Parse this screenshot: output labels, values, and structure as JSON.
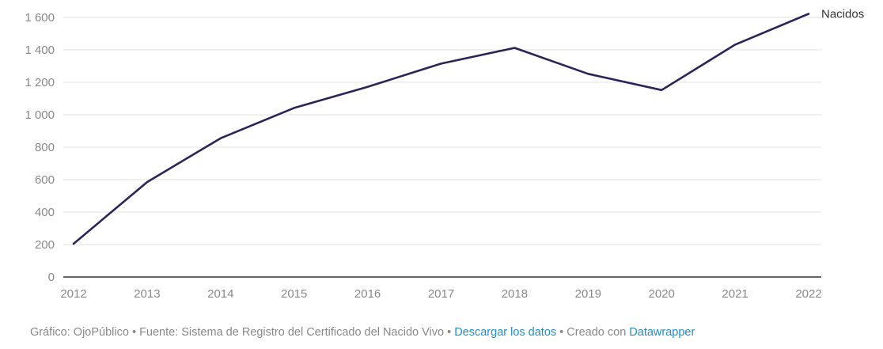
{
  "chart_data": {
    "type": "line",
    "x": [
      2012,
      2013,
      2014,
      2015,
      2016,
      2017,
      2018,
      2019,
      2020,
      2021,
      2022
    ],
    "series": [
      {
        "name": "Nacidos",
        "values": [
          205,
          585,
          855,
          1042,
          1172,
          1315,
          1412,
          1252,
          1152,
          1432,
          1622
        ],
        "color": "#2c2459"
      }
    ],
    "y_ticks": [
      0,
      200,
      400,
      600,
      800,
      1000,
      1200,
      1400,
      1600
    ],
    "y_tick_labels": [
      "0",
      "200",
      "400",
      "600",
      "800",
      "1 000",
      "1 200",
      "1 400",
      "1 600"
    ],
    "x_tick_labels": [
      "2012",
      "2013",
      "2014",
      "2015",
      "2016",
      "2017",
      "2018",
      "2019",
      "2020",
      "2021",
      "2022"
    ],
    "ylim": [
      0,
      1600
    ],
    "xlim": [
      2012,
      2022
    ],
    "grid": true,
    "title": "",
    "xlabel": "",
    "ylabel": ""
  },
  "footer": {
    "credit": "Gráfico: OjoPúblico",
    "sep1": " • ",
    "source": "Fuente: Sistema de Registro del Certificado del Nacido Vivo",
    "sep2": " • ",
    "download_link": "Descargar los datos",
    "sep3": " • ",
    "created_with": "Creado con ",
    "tool_link": "Datawrapper"
  },
  "colors": {
    "line": "#2c2459",
    "grid": "#e0e0e0",
    "axis": "#333333",
    "tick_text": "#888888",
    "link": "#1f8ec9"
  }
}
